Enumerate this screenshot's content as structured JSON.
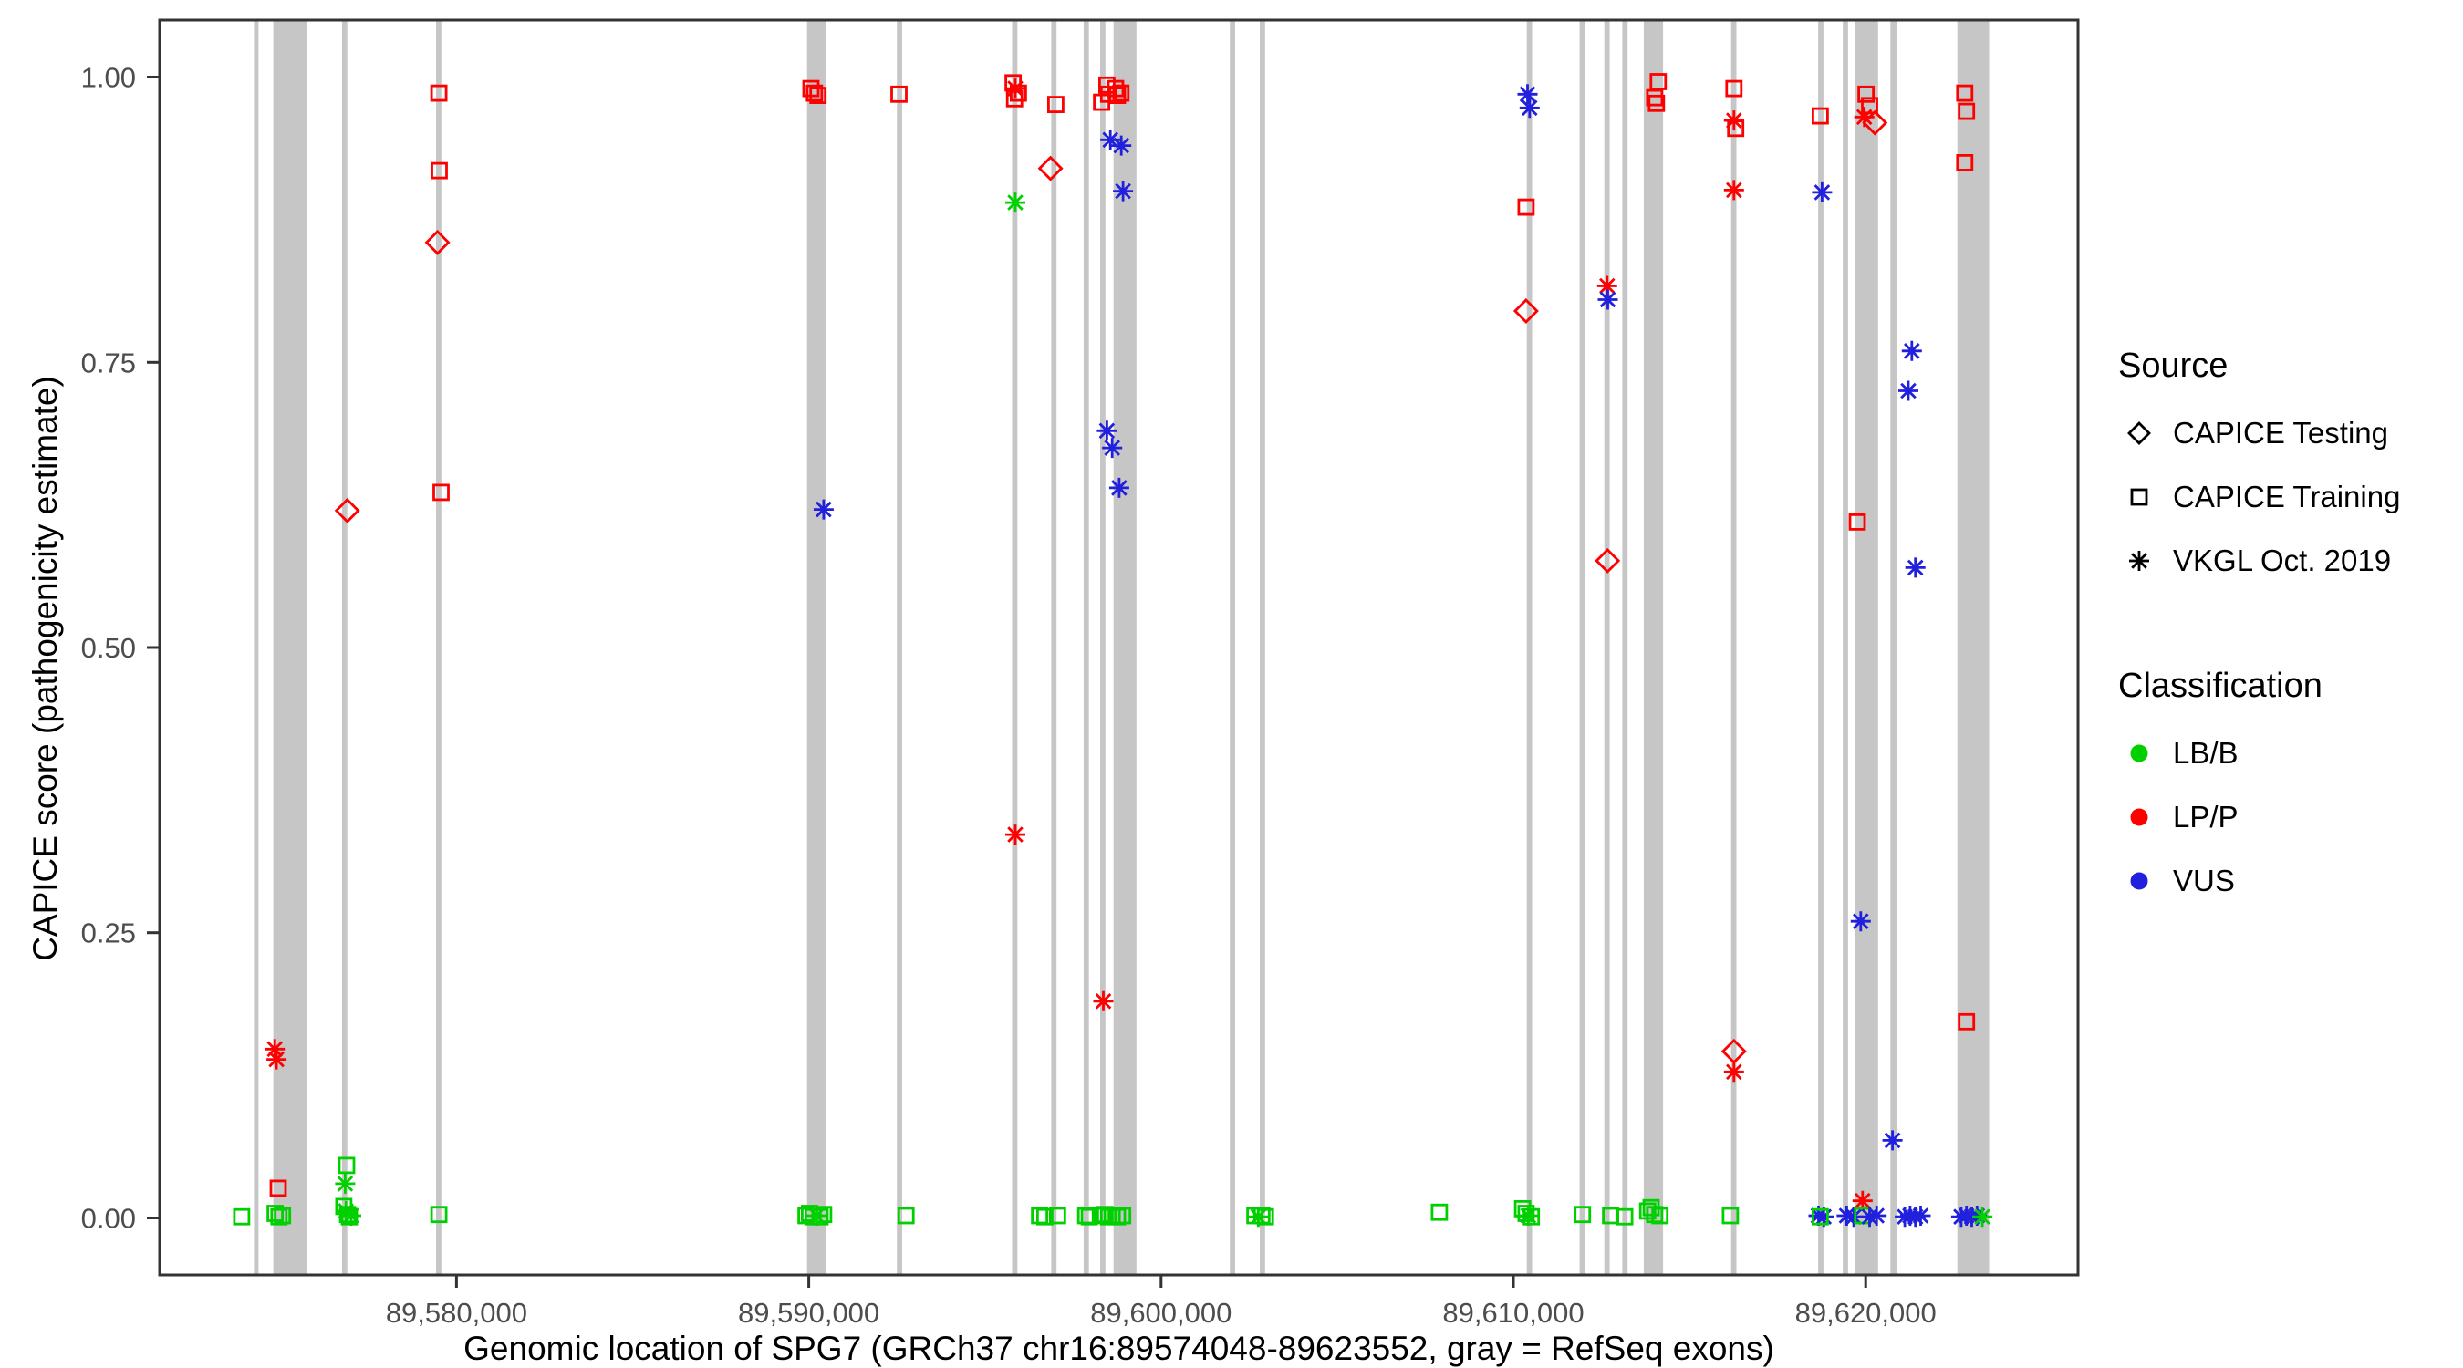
{
  "legend": {
    "source_title": "Source",
    "source_items": [
      {
        "label": "CAPICE Testing",
        "shape": "diamond"
      },
      {
        "label": "CAPICE Training",
        "shape": "square"
      },
      {
        "label": "VKGL Oct. 2019",
        "shape": "asterisk"
      }
    ],
    "classification_title": "Classification",
    "classification_items": [
      {
        "label": "LB/B",
        "color": "#00D000"
      },
      {
        "label": "LP/P",
        "color": "#FF0000"
      },
      {
        "label": "VUS",
        "color": "#2020DD"
      }
    ]
  },
  "chart_data": {
    "type": "scatter",
    "title": "",
    "xlabel": "Genomic location of SPG7 (GRCh37 chr16:89574048-89623552, gray = RefSeq exons)",
    "ylabel": "CAPICE score (pathogenicity estimate)",
    "xlim": [
      89571573,
      89626027
    ],
    "ylim": [
      -0.05,
      1.05
    ],
    "x_ticks": [
      {
        "value": 89580000,
        "label": "89,580,000"
      },
      {
        "value": 89590000,
        "label": "89,590,000"
      },
      {
        "value": 89600000,
        "label": "89,600,000"
      },
      {
        "value": 89610000,
        "label": "89,610,000"
      },
      {
        "value": 89620000,
        "label": "89,620,000"
      }
    ],
    "y_ticks": [
      {
        "value": 0.0,
        "label": "0.00"
      },
      {
        "value": 0.25,
        "label": "0.25"
      },
      {
        "value": 0.5,
        "label": "0.50"
      },
      {
        "value": 0.75,
        "label": "0.75"
      },
      {
        "value": 1.0,
        "label": "1.00"
      }
    ],
    "colors": {
      "LB/B": "#00D000",
      "LP/P": "#FF0000",
      "VUS": "#2020DD",
      "exon": "#C6C6C6"
    },
    "shape_by_source": {
      "testing": "diamond",
      "training": "square",
      "vkgl": "asterisk"
    },
    "exons": [
      [
        89574250,
        89574380
      ],
      [
        89574800,
        89575750
      ],
      [
        89576750,
        89576900
      ],
      [
        89579420,
        89579570
      ],
      [
        89589950,
        89590500
      ],
      [
        89592500,
        89592650
      ],
      [
        89595770,
        89595920
      ],
      [
        89596880,
        89597030
      ],
      [
        89597800,
        89597950
      ],
      [
        89598270,
        89598420
      ],
      [
        89598650,
        89599300
      ],
      [
        89601950,
        89602100
      ],
      [
        89602800,
        89602950
      ],
      [
        89610380,
        89610530
      ],
      [
        89611880,
        89612030
      ],
      [
        89612580,
        89612730
      ],
      [
        89613090,
        89613240
      ],
      [
        89613700,
        89614250
      ],
      [
        89616180,
        89616330
      ],
      [
        89618650,
        89618800
      ],
      [
        89619350,
        89619500
      ],
      [
        89619700,
        89620350
      ],
      [
        89620700,
        89620900
      ],
      [
        89622600,
        89623500
      ]
    ],
    "points_format": [
      "x_genomic_position",
      "capice_score",
      "source",
      "classification"
    ],
    "points": [
      [
        89573900,
        0.001,
        "training",
        "LB/B"
      ],
      [
        89574840,
        0.148,
        "vkgl",
        "LP/P"
      ],
      [
        89574890,
        0.139,
        "vkgl",
        "LP/P"
      ],
      [
        89574940,
        0.026,
        "training",
        "LP/P"
      ],
      [
        89574850,
        0.004,
        "training",
        "LB/B"
      ],
      [
        89574960,
        0.001,
        "training",
        "LB/B"
      ],
      [
        89575060,
        0.002,
        "training",
        "LB/B"
      ],
      [
        89576900,
        0.62,
        "testing",
        "LP/P"
      ],
      [
        89576880,
        0.046,
        "training",
        "LB/B"
      ],
      [
        89576840,
        0.03,
        "vkgl",
        "LB/B"
      ],
      [
        89576800,
        0.01,
        "training",
        "LB/B"
      ],
      [
        89576860,
        0.006,
        "vkgl",
        "LB/B"
      ],
      [
        89576910,
        0.003,
        "training",
        "LB/B"
      ],
      [
        89576960,
        0.001,
        "training",
        "LB/B"
      ],
      [
        89577010,
        0.002,
        "vkgl",
        "LB/B"
      ],
      [
        89579500,
        0.986,
        "training",
        "LP/P"
      ],
      [
        89579510,
        0.918,
        "training",
        "LP/P"
      ],
      [
        89579460,
        0.855,
        "testing",
        "LP/P"
      ],
      [
        89579560,
        0.636,
        "training",
        "LP/P"
      ],
      [
        89579500,
        0.003,
        "training",
        "LB/B"
      ],
      [
        89590060,
        0.99,
        "training",
        "LP/P"
      ],
      [
        89590160,
        0.986,
        "training",
        "LP/P"
      ],
      [
        89590260,
        0.984,
        "training",
        "LP/P"
      ],
      [
        89590420,
        0.621,
        "vkgl",
        "VUS"
      ],
      [
        89589920,
        0.002,
        "training",
        "LB/B"
      ],
      [
        89590020,
        0.004,
        "training",
        "LB/B"
      ],
      [
        89590120,
        0.001,
        "training",
        "LB/B"
      ],
      [
        89590220,
        0.002,
        "vkgl",
        "LB/B"
      ],
      [
        89590320,
        0.001,
        "training",
        "LB/B"
      ],
      [
        89590420,
        0.003,
        "training",
        "LB/B"
      ],
      [
        89592560,
        0.985,
        "training",
        "LP/P"
      ],
      [
        89592760,
        0.002,
        "training",
        "LB/B"
      ],
      [
        89595800,
        0.995,
        "training",
        "LP/P"
      ],
      [
        89595860,
        0.99,
        "vkgl",
        "LP/P"
      ],
      [
        89595840,
        0.981,
        "training",
        "LP/P"
      ],
      [
        89595950,
        0.986,
        "training",
        "LP/P"
      ],
      [
        89595860,
        0.89,
        "vkgl",
        "LB/B"
      ],
      [
        89595860,
        0.336,
        "vkgl",
        "LP/P"
      ],
      [
        89596550,
        0.002,
        "training",
        "LB/B"
      ],
      [
        89596700,
        0.001,
        "training",
        "LB/B"
      ],
      [
        89596860,
        0.92,
        "testing",
        "LP/P"
      ],
      [
        89597010,
        0.976,
        "training",
        "LP/P"
      ],
      [
        89597060,
        0.002,
        "training",
        "LB/B"
      ],
      [
        89598310,
        0.978,
        "training",
        "LP/P"
      ],
      [
        89598460,
        0.993,
        "training",
        "LP/P"
      ],
      [
        89598510,
        0.985,
        "training",
        "LP/P"
      ],
      [
        89598710,
        0.99,
        "training",
        "LP/P"
      ],
      [
        89598760,
        0.984,
        "training",
        "LP/P"
      ],
      [
        89598860,
        0.986,
        "training",
        "LP/P"
      ],
      [
        89598560,
        0.945,
        "vkgl",
        "VUS"
      ],
      [
        89598870,
        0.94,
        "vkgl",
        "VUS"
      ],
      [
        89598920,
        0.9,
        "vkgl",
        "VUS"
      ],
      [
        89598460,
        0.69,
        "vkgl",
        "VUS"
      ],
      [
        89598610,
        0.675,
        "vkgl",
        "VUS"
      ],
      [
        89598810,
        0.64,
        "vkgl",
        "VUS"
      ],
      [
        89598360,
        0.19,
        "vkgl",
        "LP/P"
      ],
      [
        89597860,
        0.002,
        "training",
        "LB/B"
      ],
      [
        89597960,
        0.001,
        "training",
        "LB/B"
      ],
      [
        89598310,
        0.002,
        "training",
        "LB/B"
      ],
      [
        89598410,
        0.003,
        "training",
        "LB/B"
      ],
      [
        89598510,
        0.001,
        "training",
        "LB/B"
      ],
      [
        89598610,
        0.002,
        "training",
        "LB/B"
      ],
      [
        89598760,
        0.001,
        "training",
        "LB/B"
      ],
      [
        89598910,
        0.002,
        "training",
        "LB/B"
      ],
      [
        89602660,
        0.002,
        "training",
        "LB/B"
      ],
      [
        89602760,
        0.001,
        "vkgl",
        "LB/B"
      ],
      [
        89602860,
        0.002,
        "training",
        "LB/B"
      ],
      [
        89602960,
        0.001,
        "training",
        "LB/B"
      ],
      [
        89607900,
        0.005,
        "training",
        "LB/B"
      ],
      [
        89610400,
        0.985,
        "vkgl",
        "VUS"
      ],
      [
        89610460,
        0.973,
        "vkgl",
        "VUS"
      ],
      [
        89610360,
        0.886,
        "training",
        "LP/P"
      ],
      [
        89610360,
        0.795,
        "testing",
        "LP/P"
      ],
      [
        89610260,
        0.008,
        "training",
        "LB/B"
      ],
      [
        89610360,
        0.004,
        "training",
        "LB/B"
      ],
      [
        89610420,
        0.002,
        "vkgl",
        "LB/B"
      ],
      [
        89610510,
        0.001,
        "training",
        "LB/B"
      ],
      [
        89612660,
        0.817,
        "vkgl",
        "LP/P"
      ],
      [
        89612680,
        0.805,
        "vkgl",
        "VUS"
      ],
      [
        89612670,
        0.576,
        "testing",
        "LP/P"
      ],
      [
        89611960,
        0.003,
        "training",
        "LB/B"
      ],
      [
        89612760,
        0.002,
        "training",
        "LB/B"
      ],
      [
        89613160,
        0.001,
        "training",
        "LB/B"
      ],
      [
        89614110,
        0.996,
        "training",
        "LP/P"
      ],
      [
        89614010,
        0.982,
        "training",
        "LP/P"
      ],
      [
        89614060,
        0.977,
        "training",
        "LP/P"
      ],
      [
        89613810,
        0.006,
        "training",
        "LB/B"
      ],
      [
        89613910,
        0.009,
        "training",
        "LB/B"
      ],
      [
        89614010,
        0.003,
        "training",
        "LB/B"
      ],
      [
        89614160,
        0.002,
        "training",
        "LB/B"
      ],
      [
        89616260,
        0.99,
        "training",
        "LP/P"
      ],
      [
        89616260,
        0.962,
        "vkgl",
        "LP/P"
      ],
      [
        89616310,
        0.955,
        "training",
        "LP/P"
      ],
      [
        89616260,
        0.901,
        "vkgl",
        "LP/P"
      ],
      [
        89616260,
        0.146,
        "testing",
        "LP/P"
      ],
      [
        89616260,
        0.128,
        "vkgl",
        "LP/P"
      ],
      [
        89616160,
        0.002,
        "training",
        "LB/B"
      ],
      [
        89618710,
        0.966,
        "training",
        "LP/P"
      ],
      [
        89618760,
        0.899,
        "vkgl",
        "VUS"
      ],
      [
        89618660,
        0.002,
        "vkgl",
        "VUS"
      ],
      [
        89618810,
        0.001,
        "vkgl",
        "VUS"
      ],
      [
        89618710,
        0.001,
        "training",
        "LB/B"
      ],
      [
        89620010,
        0.985,
        "training",
        "LP/P"
      ],
      [
        89620110,
        0.975,
        "training",
        "LP/P"
      ],
      [
        89619960,
        0.965,
        "vkgl",
        "LP/P"
      ],
      [
        89620260,
        0.96,
        "testing",
        "LP/P"
      ],
      [
        89619760,
        0.61,
        "training",
        "LP/P"
      ],
      [
        89619860,
        0.26,
        "vkgl",
        "VUS"
      ],
      [
        89620760,
        0.068,
        "vkgl",
        "VUS"
      ],
      [
        89619910,
        0.015,
        "vkgl",
        "LP/P"
      ],
      [
        89619460,
        0.002,
        "vkgl",
        "VUS"
      ],
      [
        89619660,
        0.001,
        "vkgl",
        "VUS"
      ],
      [
        89619910,
        0.002,
        "training",
        "LB/B"
      ],
      [
        89620110,
        0.001,
        "vkgl",
        "VUS"
      ],
      [
        89620310,
        0.002,
        "vkgl",
        "VUS"
      ],
      [
        89621310,
        0.76,
        "vkgl",
        "VUS"
      ],
      [
        89621210,
        0.725,
        "vkgl",
        "VUS"
      ],
      [
        89621410,
        0.57,
        "vkgl",
        "VUS"
      ],
      [
        89621110,
        0.001,
        "vkgl",
        "VUS"
      ],
      [
        89621260,
        0.002,
        "vkgl",
        "VUS"
      ],
      [
        89621410,
        0.001,
        "vkgl",
        "VUS"
      ],
      [
        89621560,
        0.002,
        "vkgl",
        "VUS"
      ],
      [
        89622810,
        0.986,
        "training",
        "LP/P"
      ],
      [
        89622860,
        0.97,
        "training",
        "LP/P"
      ],
      [
        89622810,
        0.925,
        "training",
        "LP/P"
      ],
      [
        89622860,
        0.172,
        "training",
        "LP/P"
      ],
      [
        89622710,
        0.001,
        "vkgl",
        "VUS"
      ],
      [
        89622860,
        0.002,
        "vkgl",
        "VUS"
      ],
      [
        89623010,
        0.001,
        "vkgl",
        "VUS"
      ],
      [
        89623160,
        0.002,
        "vkgl",
        "VUS"
      ],
      [
        89623310,
        0.001,
        "vkgl",
        "LB/B"
      ]
    ]
  }
}
